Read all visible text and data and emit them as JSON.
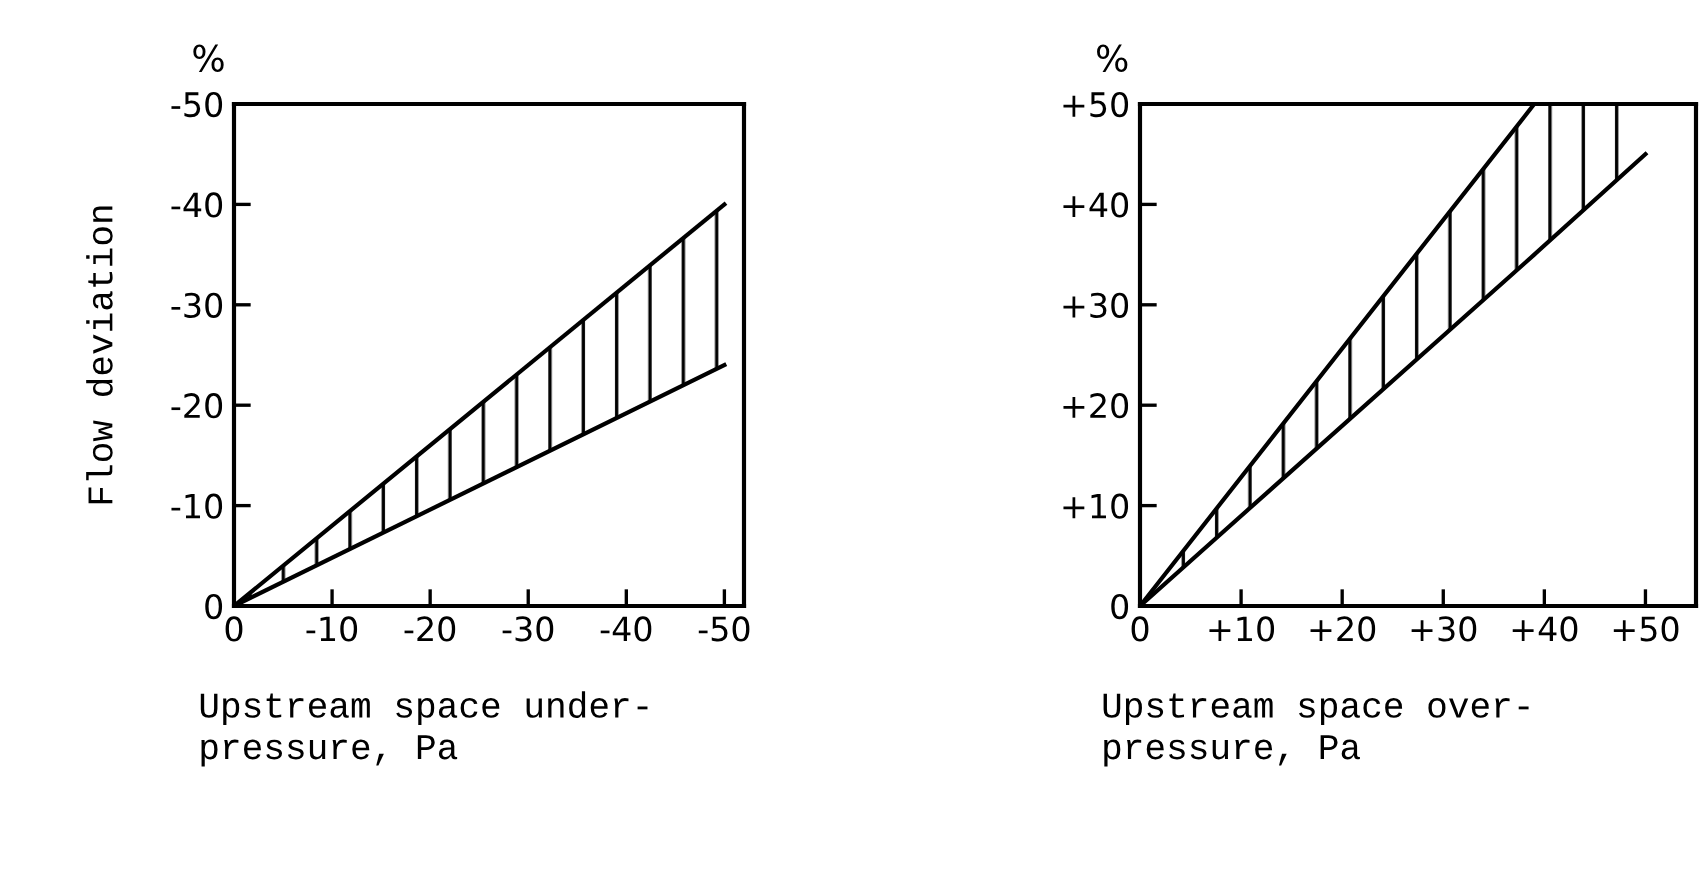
{
  "chart_data": [
    {
      "type": "line",
      "ylabel": "Flow deviation",
      "xlabel": "Upstream space under-\npressure, Pa",
      "annotations": [
        "%"
      ],
      "x": [
        0,
        -50
      ],
      "series": [
        {
          "color": "#000000",
          "values": [
            0,
            -40
          ],
          "lower": [
            0,
            -24
          ],
          "upper": [
            0,
            -40
          ]
        },
        {
          "color": "#000000",
          "values": [
            0,
            -24
          ]
        }
      ],
      "xlim": [
        0,
        -52
      ],
      "ylim": [
        0,
        -50
      ],
      "xticks": [
        0,
        -10,
        -20,
        -30,
        -40,
        -50
      ],
      "yticks": [
        0,
        -10,
        -20,
        -30,
        -40,
        -50
      ],
      "grid": false,
      "legend": false
    },
    {
      "type": "line",
      "xlabel": "Upstream space over-\npressure, Pa",
      "annotations": [
        "%"
      ],
      "x": [
        0,
        39,
        50
      ],
      "series": [
        {
          "color": "#000000",
          "values": [
            0,
            50,
            50
          ],
          "lower": [
            0,
            35,
            45
          ],
          "upper": [
            0,
            50,
            50
          ]
        },
        {
          "color": "#000000",
          "values": [
            0,
            35,
            45
          ]
        }
      ],
      "xlim": [
        0,
        55
      ],
      "ylim": [
        0,
        50
      ],
      "xticks": [
        0,
        {
          "value": 10,
          "label": "+10"
        },
        {
          "value": 20,
          "label": "+20"
        },
        {
          "value": 30,
          "label": "+30"
        },
        {
          "value": 40,
          "label": "+40"
        },
        {
          "value": 50,
          "label": "+50"
        }
      ],
      "yticks": [
        0,
        {
          "value": 10,
          "label": "+10"
        },
        {
          "value": 20,
          "label": "+20"
        },
        {
          "value": 30,
          "label": "+30"
        },
        {
          "value": 40,
          "label": "+40"
        },
        {
          "value": 50,
          "label": "+50"
        }
      ],
      "grid": false,
      "legend": false
    }
  ]
}
